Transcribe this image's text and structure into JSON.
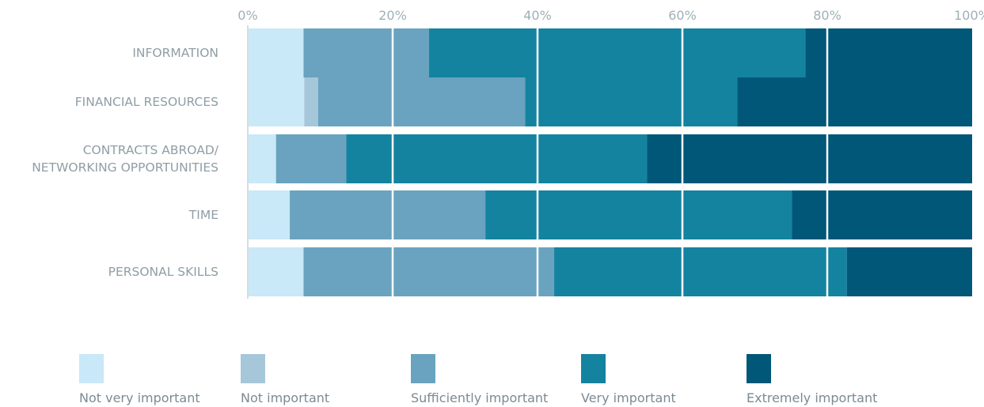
{
  "chart_data": {
    "type": "bar",
    "orientation": "horizontal",
    "stacked": "percent",
    "categories": [
      [
        "INFORMATION"
      ],
      [
        "FINANCIAL RESOURCES"
      ],
      [
        "CONTRACTS ABROAD/",
        "NETWORKING OPPORTUNITIES"
      ],
      [
        "TIME"
      ],
      [
        "PERSONAL SKILLS"
      ]
    ],
    "series": [
      {
        "name": "Not very important",
        "color": "#c9e8f8",
        "values": [
          7.7,
          7.8,
          3.9,
          5.8,
          7.7
        ]
      },
      {
        "name": "Not important",
        "color": "#a6c6da",
        "values": [
          0,
          1.9,
          0,
          0,
          0
        ]
      },
      {
        "name": "Sufficiently important",
        "color": "#69a3c0",
        "values": [
          17.3,
          28.6,
          9.7,
          27.0,
          34.6
        ]
      },
      {
        "name": "Very important",
        "color": "#14839f",
        "values": [
          52.0,
          29.3,
          41.5,
          42.3,
          40.4
        ]
      },
      {
        "name": "Extremely important",
        "color": "#005778",
        "values": [
          23.0,
          32.4,
          44.9,
          24.9,
          17.3
        ]
      }
    ],
    "xlim": [
      0,
      100
    ],
    "xticks": [
      "0%",
      "20%",
      "40%",
      "60%",
      "80%",
      "100%"
    ],
    "axis_position": "top",
    "grid": true,
    "legend_position": "bottom"
  }
}
